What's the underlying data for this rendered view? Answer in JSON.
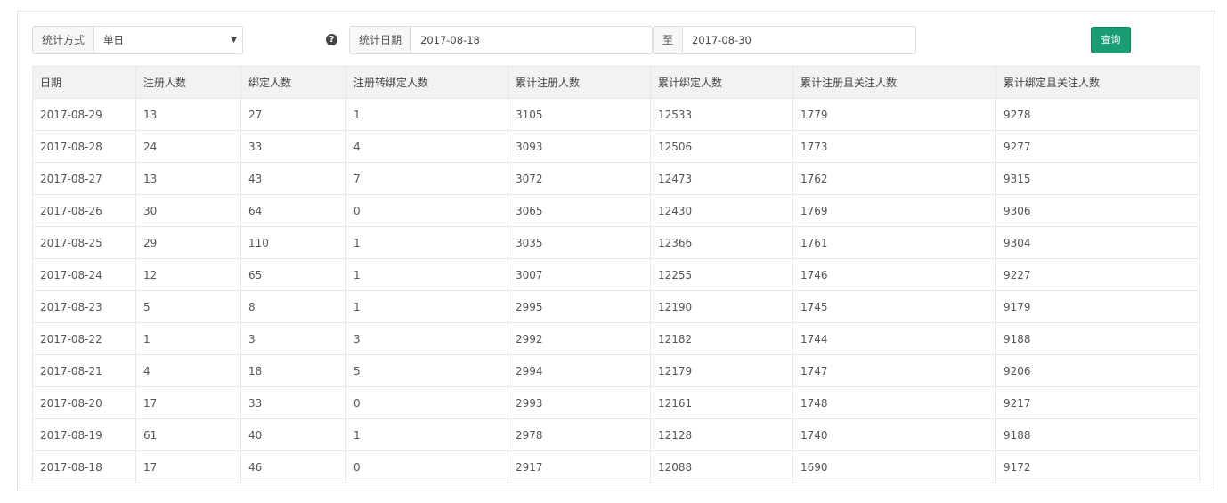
{
  "filter": {
    "mode_label": "统计方式",
    "mode_value": "单日",
    "help_icon": "question-circle-icon",
    "date_label": "统计日期",
    "start_date": "2017-08-18",
    "to_label": "至",
    "end_date": "2017-08-30",
    "query_button": "查询",
    "accent_color": "#1a9c74"
  },
  "table": {
    "headers": [
      "日期",
      "注册人数",
      "绑定人数",
      "注册转绑定人数",
      "累计注册人数",
      "累计绑定人数",
      "累计注册且关注人数",
      "累计绑定且关注人数"
    ],
    "rows": [
      [
        "2017-08-29",
        "13",
        "27",
        "1",
        "3105",
        "12533",
        "1779",
        "9278"
      ],
      [
        "2017-08-28",
        "24",
        "33",
        "4",
        "3093",
        "12506",
        "1773",
        "9277"
      ],
      [
        "2017-08-27",
        "13",
        "43",
        "7",
        "3072",
        "12473",
        "1762",
        "9315"
      ],
      [
        "2017-08-26",
        "30",
        "64",
        "0",
        "3065",
        "12430",
        "1769",
        "9306"
      ],
      [
        "2017-08-25",
        "29",
        "110",
        "1",
        "3035",
        "12366",
        "1761",
        "9304"
      ],
      [
        "2017-08-24",
        "12",
        "65",
        "1",
        "3007",
        "12255",
        "1746",
        "9227"
      ],
      [
        "2017-08-23",
        "5",
        "8",
        "1",
        "2995",
        "12190",
        "1745",
        "9179"
      ],
      [
        "2017-08-22",
        "1",
        "3",
        "3",
        "2992",
        "12182",
        "1744",
        "9188"
      ],
      [
        "2017-08-21",
        "4",
        "18",
        "5",
        "2994",
        "12179",
        "1747",
        "9206"
      ],
      [
        "2017-08-20",
        "17",
        "33",
        "0",
        "2993",
        "12161",
        "1748",
        "9217"
      ],
      [
        "2017-08-19",
        "61",
        "40",
        "1",
        "2978",
        "12128",
        "1740",
        "9188"
      ],
      [
        "2017-08-18",
        "17",
        "46",
        "0",
        "2917",
        "12088",
        "1690",
        "9172"
      ]
    ]
  }
}
